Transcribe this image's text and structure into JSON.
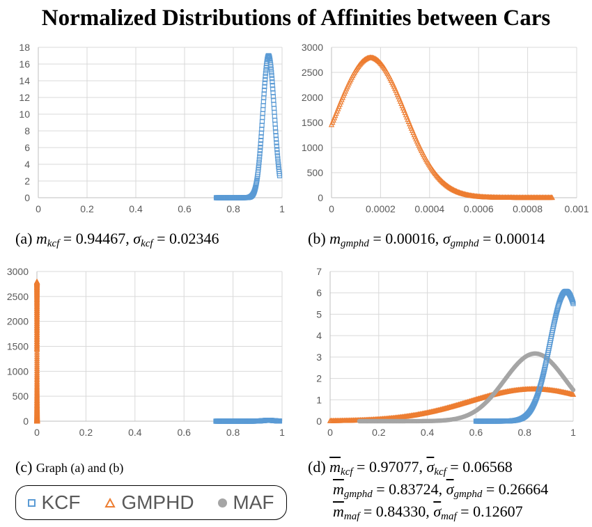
{
  "figure_title": "Normalized Distributions of Affinities between Cars",
  "colors": {
    "kcf": "#5B9BD5",
    "gmphd": "#ED7D31",
    "maf": "#A5A5A5",
    "grid": "#D9D9D9",
    "axis": "#BFBFBF"
  },
  "legend": [
    {
      "label": "KCF",
      "marker": "square-icon"
    },
    {
      "label": "GMPHD",
      "marker": "triangle-icon"
    },
    {
      "label": "MAF",
      "marker": "circle-icon"
    }
  ],
  "captions": {
    "a": {
      "tag": "(a)",
      "m_sym": "m",
      "m_sub": "kcf",
      "m_val": "= 0.94467,",
      "s_sym": "σ",
      "s_sub": "kcf",
      "s_val": "= 0.02346"
    },
    "b": {
      "tag": "(b)",
      "m_sym": "m",
      "m_sub": "gmphd",
      "m_val": "= 0.00016,",
      "s_sym": "σ",
      "s_sub": "gmphd",
      "s_val": "= 0.00014"
    },
    "c": {
      "tag": "(c)",
      "text": "Graph (a) and (b)"
    },
    "d": {
      "tag": "(d)",
      "line1": {
        "m_sub": "kcf",
        "m_val": "= 0.97077,",
        "s_sub": "kcf",
        "s_val": "= 0.06568"
      },
      "line2": {
        "m_sub": "gmphd",
        "m_val": "= 0.83724,",
        "s_sub": "gmphd",
        "s_val": "= 0.26664"
      },
      "line3": {
        "m_sub": "maf",
        "m_val": "= 0.84330,",
        "s_sub": "maf",
        "s_val": "= 0.12607"
      },
      "m_sym": "m",
      "s_sym": "σ"
    }
  },
  "chart_data": [
    {
      "id": "a",
      "type": "scatter",
      "xlim": [
        0,
        1
      ],
      "ylim": [
        0,
        18
      ],
      "xticks": [
        "0",
        "0.2",
        "0.4",
        "0.6",
        "0.8",
        "1"
      ],
      "yticks": [
        "0",
        "2",
        "4",
        "6",
        "8",
        "10",
        "12",
        "14",
        "16",
        "18"
      ],
      "series": [
        {
          "name": "KCF",
          "dist": "normal",
          "mean": 0.94467,
          "sd": 0.02346,
          "xmin": 0.73,
          "xmax": 0.99,
          "scale": 1
        }
      ]
    },
    {
      "id": "b",
      "type": "scatter",
      "xlim": [
        0,
        0.001
      ],
      "ylim": [
        0,
        3000
      ],
      "xticks": [
        "0",
        "0.0002",
        "0.0004",
        "0.0006",
        "0.0008",
        "0.001"
      ],
      "yticks": [
        "0",
        "500",
        "1000",
        "1500",
        "2000",
        "2500",
        "3000"
      ],
      "series": [
        {
          "name": "GMPHD",
          "dist": "normal",
          "mean": 0.00016,
          "sd": 0.00014,
          "xmin": 0.0,
          "xmax": 0.0009,
          "scale": 0.98
        }
      ]
    },
    {
      "id": "c",
      "type": "scatter",
      "xlim": [
        0,
        1
      ],
      "ylim": [
        0,
        3000
      ],
      "xticks": [
        "0",
        "0.2",
        "0.4",
        "0.6",
        "0.8",
        "1"
      ],
      "yticks": [
        "0",
        "500",
        "1000",
        "1500",
        "2000",
        "2500",
        "3000"
      ],
      "series": [
        {
          "name": "GMPHD",
          "dist": "normal",
          "mean": 0.00016,
          "sd": 0.00014,
          "xmin": 0.0,
          "xmax": 0.0009,
          "scale": 0.98
        },
        {
          "name": "KCF",
          "dist": "normal",
          "mean": 0.94467,
          "sd": 0.02346,
          "xmin": 0.73,
          "xmax": 0.99,
          "scale": 1
        }
      ]
    },
    {
      "id": "d",
      "type": "scatter",
      "xlim": [
        0,
        1
      ],
      "ylim": [
        0,
        7
      ],
      "xticks": [
        "0",
        "0.2",
        "0.4",
        "0.6",
        "0.8",
        "1"
      ],
      "yticks": [
        "0",
        "1",
        "2",
        "3",
        "4",
        "5",
        "6",
        "7"
      ],
      "series": [
        {
          "name": "GMPHD",
          "dist": "normal",
          "mean": 0.83724,
          "sd": 0.26664,
          "xmin": 0.0,
          "xmax": 1.0,
          "scale": 1
        },
        {
          "name": "MAF",
          "dist": "normal",
          "mean": 0.8433,
          "sd": 0.12607,
          "xmin": 0.12,
          "xmax": 1.0,
          "scale": 1
        },
        {
          "name": "KCF",
          "dist": "normal",
          "mean": 0.97077,
          "sd": 0.06568,
          "xmin": 0.6,
          "xmax": 1.0,
          "scale": 1
        }
      ]
    }
  ]
}
